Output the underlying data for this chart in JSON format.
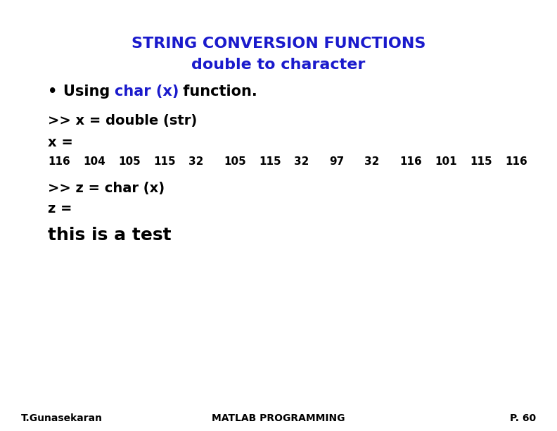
{
  "bg_color": "#ffffff",
  "title_line1": "STRING CONVERSION FUNCTIONS",
  "title_line2": "double to character",
  "title_color": "#1a1acc",
  "black": "#000000",
  "title_fontsize": 16,
  "bullet_fontsize": 15,
  "code_fontsize": 14,
  "numbers_fontsize": 11,
  "large_fontsize": 18,
  "footer_fontsize": 10,
  "bullet_black1": "Using ",
  "bullet_blue": "char (x)",
  "bullet_black2": " function.",
  "line1": ">> x = double (str)",
  "line2": "x =",
  "line3_numbers": [
    "116",
    "104",
    "105",
    "115",
    "32",
    "105",
    "115",
    "32",
    "97",
    "32",
    "116",
    "101",
    "115",
    "116"
  ],
  "line4": ">> z = char (x)",
  "line5": "z =",
  "line6": "this is a test",
  "footer_left": "T.Gunasekaran",
  "footer_center": "MATLAB PROGRAMMING",
  "footer_right": "P. 60"
}
